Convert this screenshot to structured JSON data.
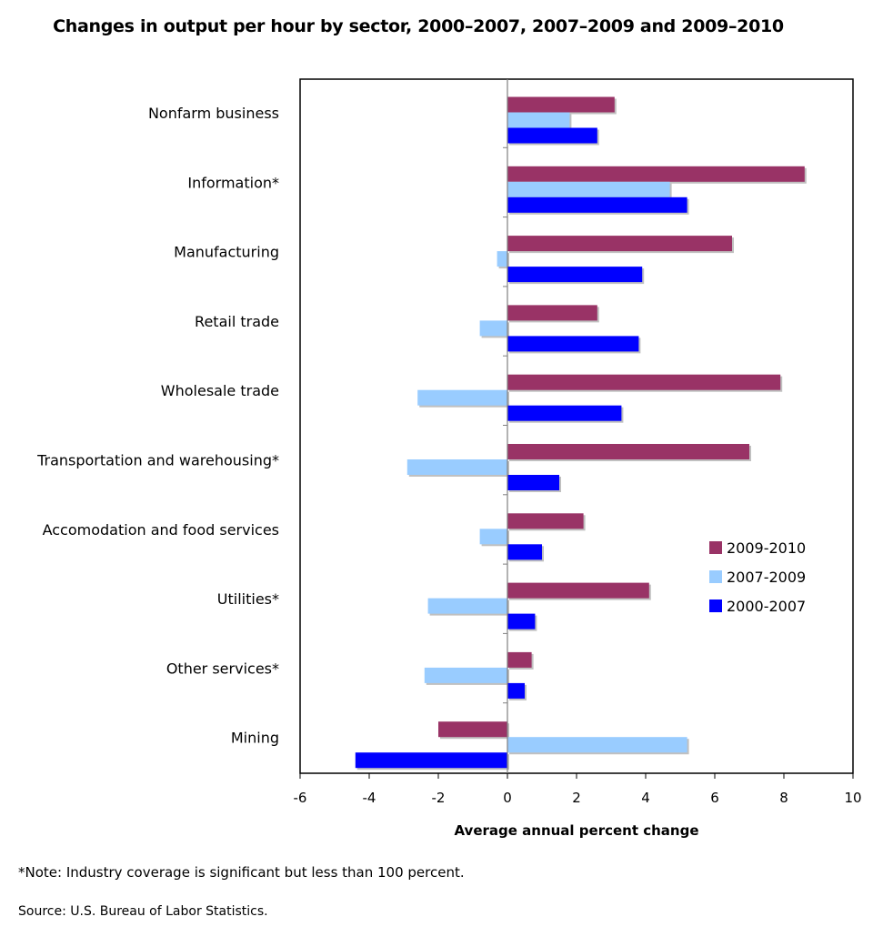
{
  "chart_data": {
    "type": "bar",
    "orientation": "horizontal",
    "title": "Changes in output per hour by sector, 2000–2007, 2007–2009 and 2009–2010",
    "xlabel": "Average annual  percent change",
    "xlim": [
      -6,
      10
    ],
    "xticks": [
      -6,
      -4,
      -2,
      0,
      2,
      4,
      6,
      8,
      10
    ],
    "categories": [
      "Nonfarm business",
      "Information*",
      "Manufacturing",
      "Retail trade",
      "Wholesale trade",
      "Transportation and warehousing*",
      "Accomodation and food services",
      "Utilities*",
      "Other services*",
      "Mining"
    ],
    "series": [
      {
        "name": "2009-2010",
        "color": "#993366",
        "values": [
          3.1,
          8.6,
          6.5,
          2.6,
          7.9,
          7.0,
          2.2,
          4.1,
          0.7,
          -2.0
        ]
      },
      {
        "name": "2007-2009",
        "color": "#99CCFF",
        "values": [
          1.8,
          4.7,
          -0.3,
          -0.8,
          -2.6,
          -2.9,
          -0.8,
          -2.3,
          -2.4,
          5.2
        ]
      },
      {
        "name": "2000-2007",
        "color": "#0000FF",
        "values": [
          2.6,
          5.2,
          3.9,
          3.8,
          3.3,
          1.5,
          1.0,
          0.8,
          0.5,
          -4.4
        ]
      }
    ],
    "legend_position": "right",
    "grid": false
  },
  "footnotes": {
    "note": "*Note: Industry coverage is significant  but less than 100 percent.",
    "source": "Source: U.S. Bureau of Labor Statistics."
  }
}
